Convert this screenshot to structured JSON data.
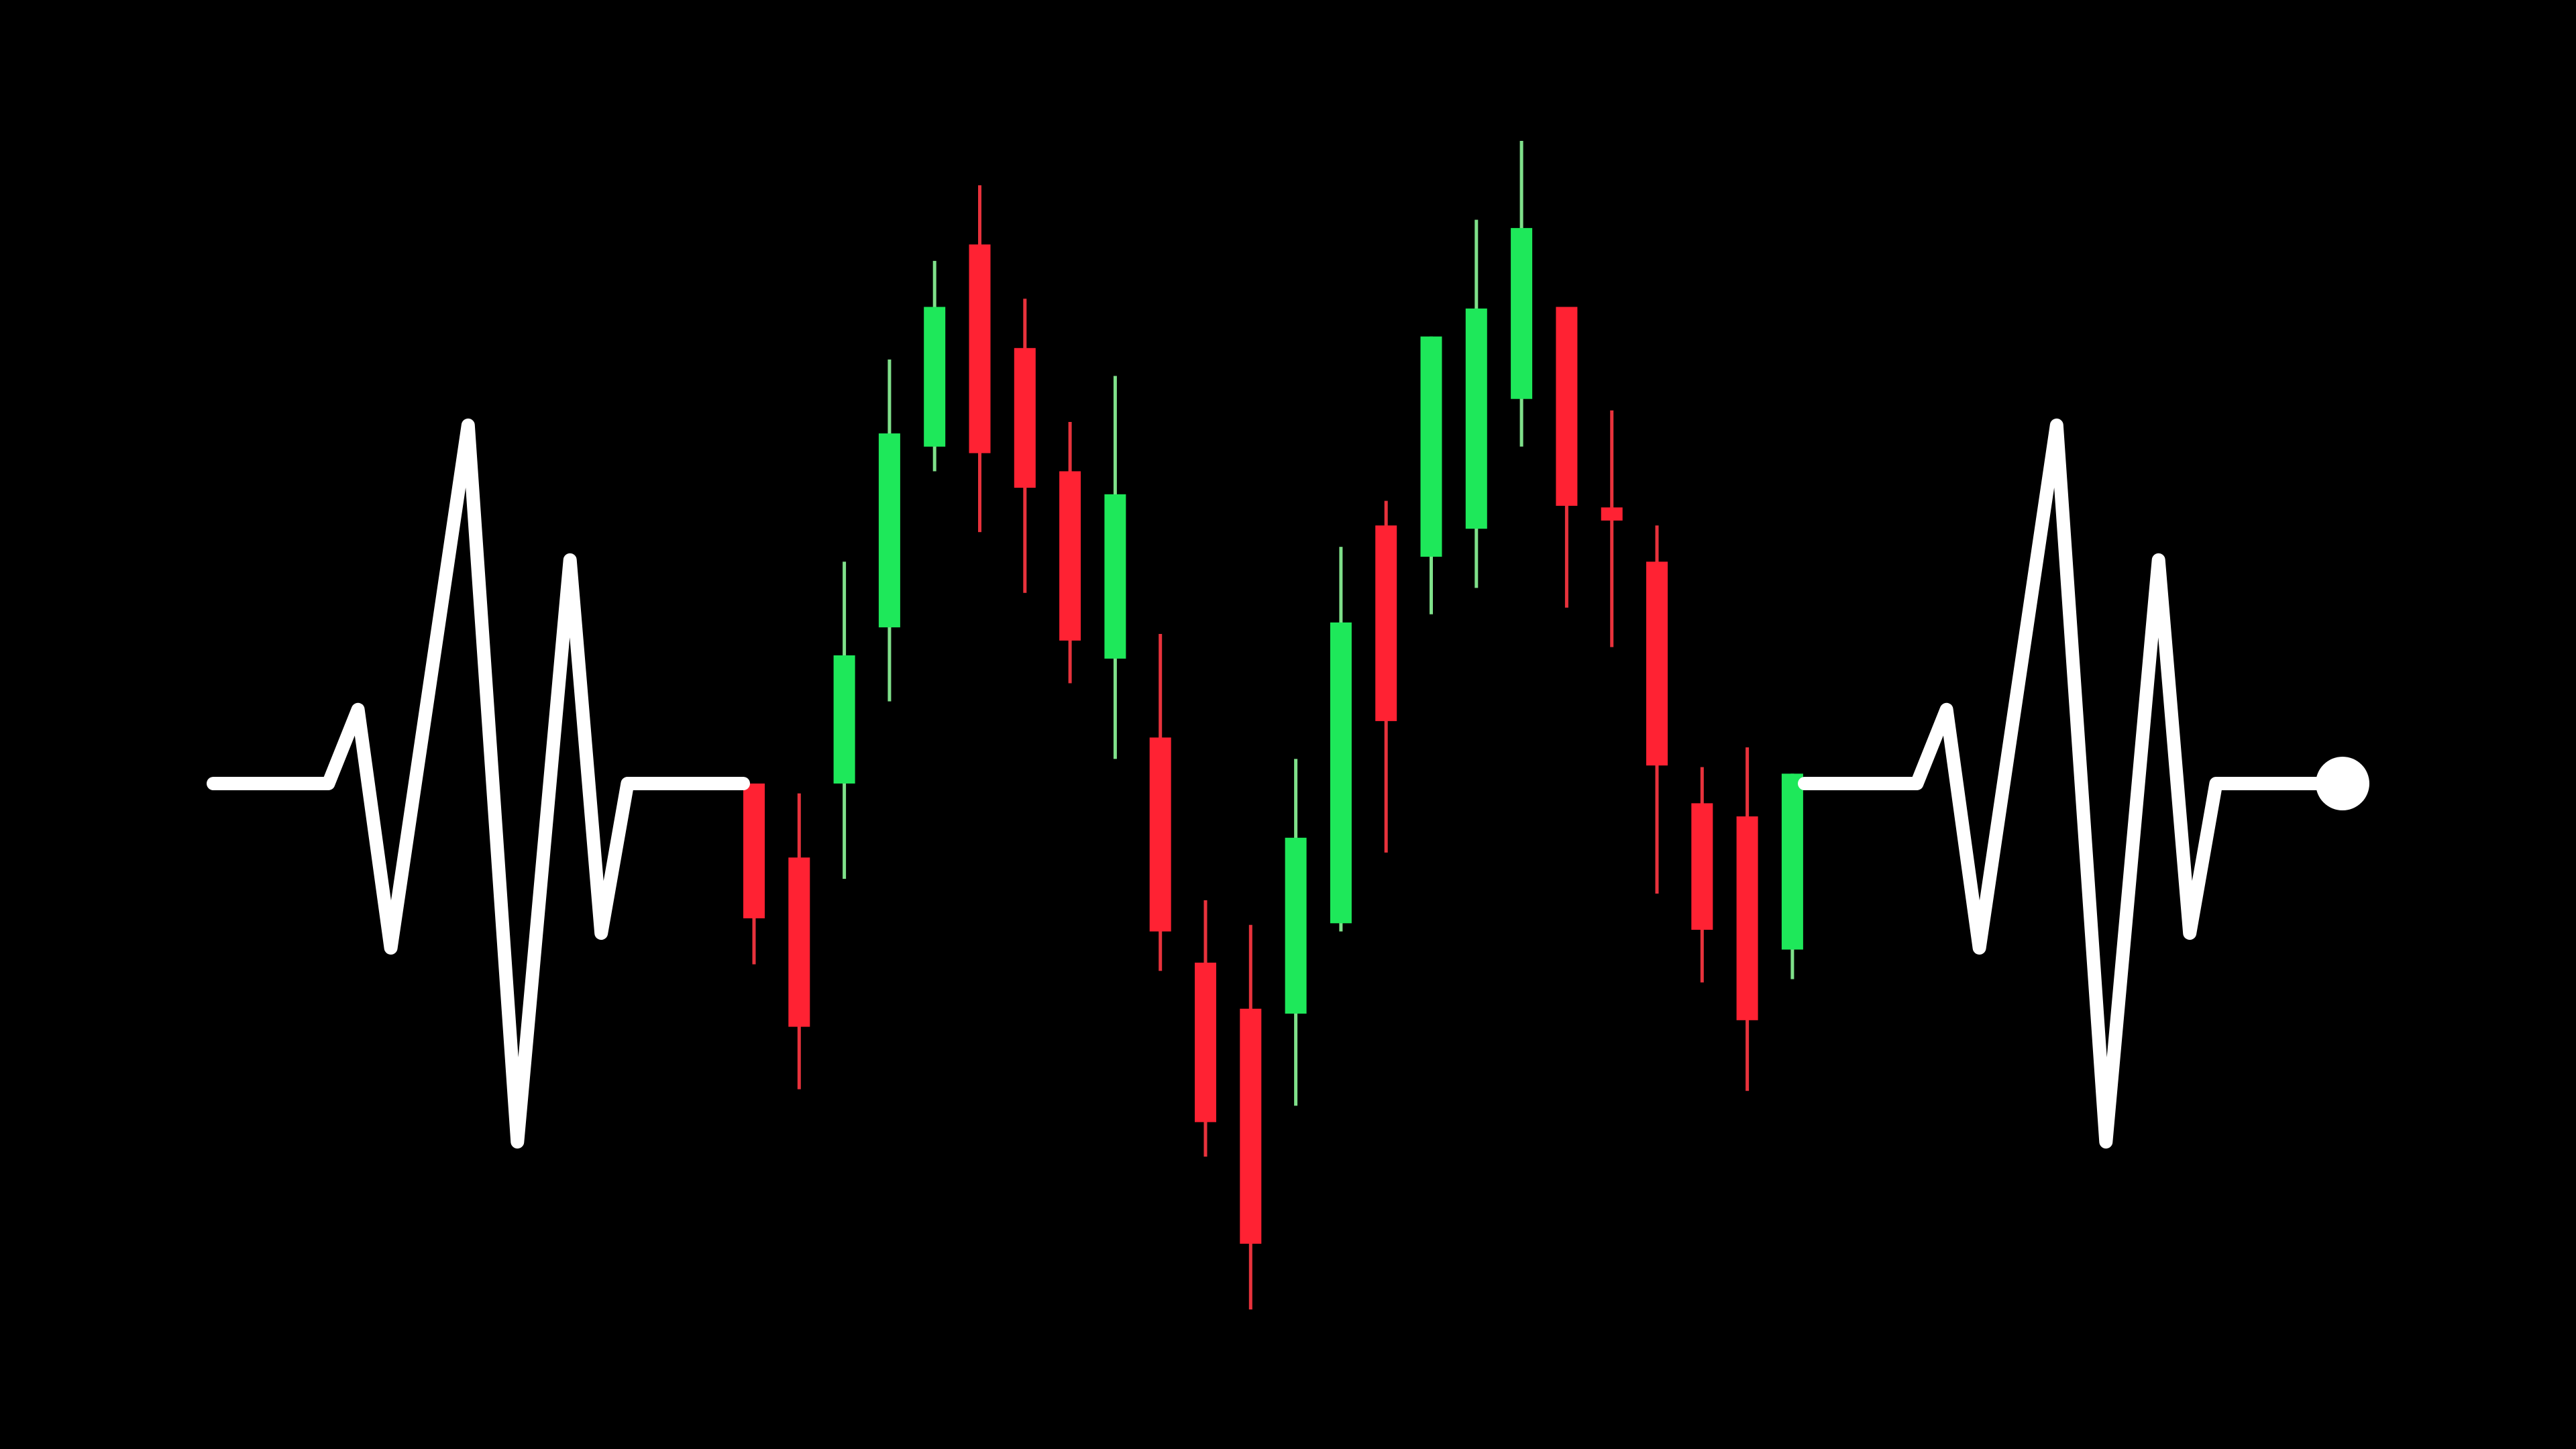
{
  "colors": {
    "background": "#000000",
    "pulse_line": "#ffffff",
    "bull_candle": "#1ee85a",
    "bull_wick": "#7fe08a",
    "bear_candle": "#ff2233",
    "bear_wick": "#e8323c"
  },
  "icons": {
    "end_marker": "dot-icon"
  },
  "candles": [
    {
      "direction": "bear",
      "open": 0,
      "close": -82,
      "high": 0,
      "low": -110
    },
    {
      "direction": "bear",
      "open": -45,
      "close": -148,
      "high": -6,
      "low": -186
    },
    {
      "direction": "bull",
      "open": 0,
      "close": 78,
      "high": 135,
      "low": -58
    },
    {
      "direction": "bull",
      "open": 95,
      "close": 213,
      "high": 258,
      "low": 50
    },
    {
      "direction": "bull",
      "open": 205,
      "close": 290,
      "high": 318,
      "low": 190
    },
    {
      "direction": "bear",
      "open": 328,
      "close": 201,
      "high": 364,
      "low": 153
    },
    {
      "direction": "bear",
      "open": 265,
      "close": 180,
      "high": 295,
      "low": 116
    },
    {
      "direction": "bear",
      "open": 190,
      "close": 87,
      "high": 220,
      "low": 61
    },
    {
      "direction": "bull",
      "open": 76,
      "close": 176,
      "high": 248,
      "low": 15
    },
    {
      "direction": "bear",
      "open": 28,
      "close": -90,
      "high": 91,
      "low": -114
    },
    {
      "direction": "bear",
      "open": -109,
      "close": -206,
      "high": -71,
      "low": -227
    },
    {
      "direction": "bear",
      "open": -137,
      "close": -280,
      "high": -86,
      "low": -320
    },
    {
      "direction": "bull",
      "open": -140,
      "close": -33,
      "high": 15,
      "low": -196
    },
    {
      "direction": "bull",
      "open": -85,
      "close": 98,
      "high": 144,
      "low": -90
    },
    {
      "direction": "bear",
      "open": 157,
      "close": 38,
      "high": 172,
      "low": -42
    },
    {
      "direction": "bull",
      "open": 138,
      "close": 272,
      "high": 272,
      "low": 103
    },
    {
      "direction": "bull",
      "open": 155,
      "close": 289,
      "high": 343,
      "low": 119
    },
    {
      "direction": "bull",
      "open": 234,
      "close": 338,
      "high": 391,
      "low": 205
    },
    {
      "direction": "bear",
      "open": 290,
      "close": 169,
      "high": 290,
      "low": 107
    },
    {
      "direction": "bear",
      "open": 168,
      "close": 160,
      "high": 227,
      "low": 83
    },
    {
      "direction": "bear",
      "open": 135,
      "close": 11,
      "high": 157,
      "low": -67
    },
    {
      "direction": "bear",
      "open": -12,
      "close": -89,
      "high": 10,
      "low": -121
    },
    {
      "direction": "bear",
      "open": -20,
      "close": -144,
      "high": 22,
      "low": -187
    },
    {
      "direction": "bull",
      "open": -101,
      "close": 6,
      "high": 6,
      "low": -119
    }
  ],
  "pulse_left": [
    [
      0,
      0
    ],
    [
      70,
      0
    ],
    [
      88,
      45
    ],
    [
      108,
      -100
    ],
    [
      155,
      218
    ],
    [
      185,
      -218
    ],
    [
      217,
      136
    ],
    [
      236,
      -91
    ],
    [
      252,
      0
    ],
    [
      328,
      0
    ]
  ],
  "pulse_right": [
    [
      0,
      0
    ],
    [
      70,
      0
    ],
    [
      88,
      45
    ],
    [
      108,
      -100
    ],
    [
      155,
      218
    ],
    [
      185,
      -218
    ],
    [
      217,
      136
    ],
    [
      236,
      -91
    ],
    [
      252,
      0
    ],
    [
      328,
      0
    ]
  ]
}
